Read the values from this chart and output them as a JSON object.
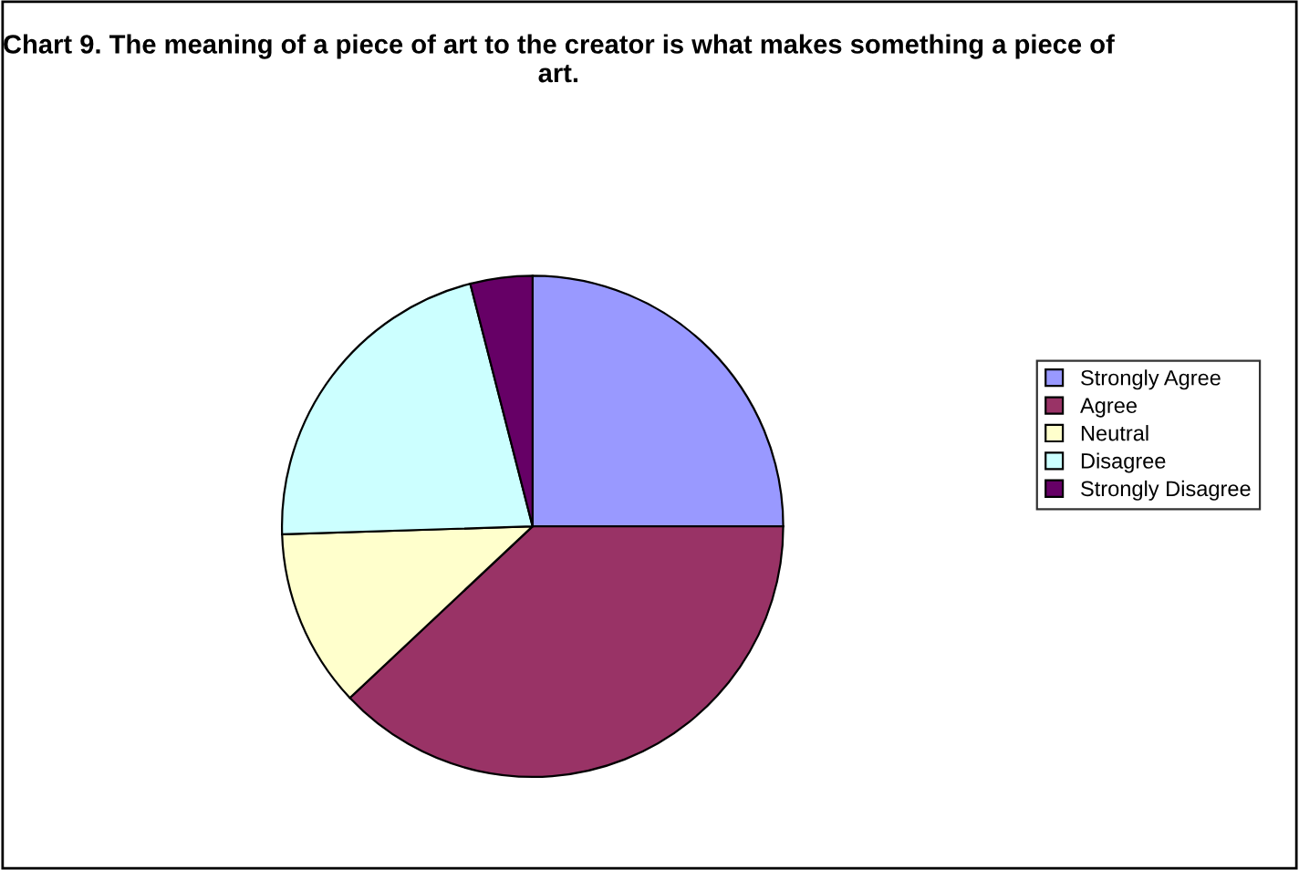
{
  "chart_data": {
    "type": "pie",
    "title": "Chart 9. The meaning of a piece of art to the creator is what makes something a piece of art.",
    "categories": [
      "Strongly Agree",
      "Agree",
      "Neutral",
      "Disagree",
      "Strongly Disagree"
    ],
    "values": [
      25,
      38,
      11.5,
      21.5,
      4
    ],
    "colors": [
      "#9999ff",
      "#993366",
      "#ffffcc",
      "#ccffff",
      "#660066"
    ],
    "legend": "right"
  }
}
